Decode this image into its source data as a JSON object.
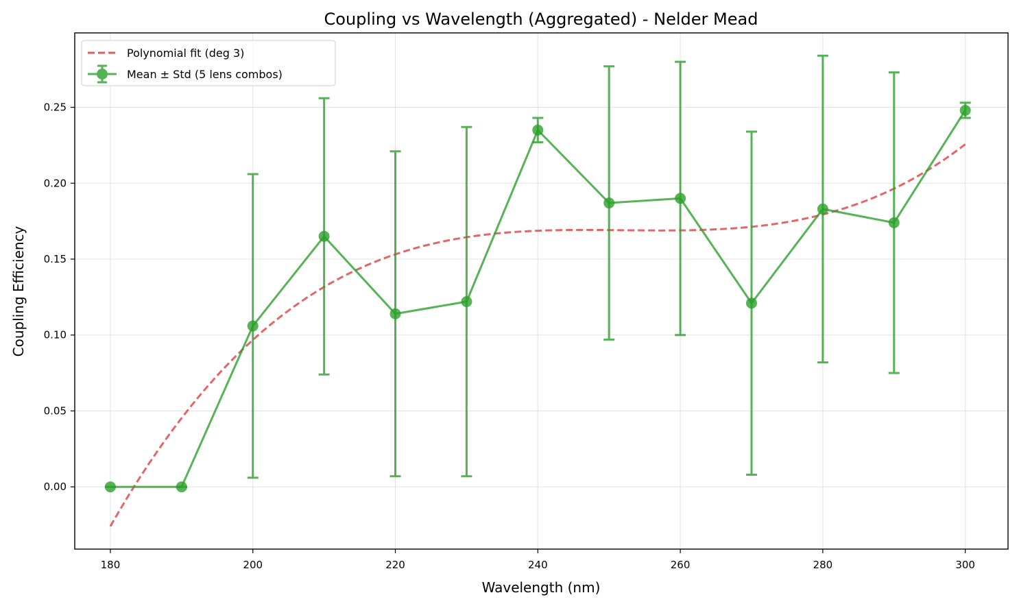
{
  "chart_data": {
    "type": "line",
    "title": "Coupling vs Wavelength (Aggregated) - Nelder Mead",
    "xlabel": "Wavelength (nm)",
    "ylabel": "Coupling Efficiency",
    "xlim": [
      175,
      306
    ],
    "ylim": [
      -0.041,
      0.299
    ],
    "x_ticks": [
      180,
      200,
      220,
      240,
      260,
      280,
      300
    ],
    "y_ticks": [
      0.0,
      0.05,
      0.1,
      0.15,
      0.2,
      0.25
    ],
    "x_tick_labels": [
      "180",
      "200",
      "220",
      "240",
      "260",
      "280",
      "300"
    ],
    "y_tick_labels": [
      "0.00",
      "0.05",
      "0.10",
      "0.15",
      "0.20",
      "0.25"
    ],
    "grid": true,
    "legend_position": "top-left",
    "series": [
      {
        "name": "Mean ± Std (5 lens combos)",
        "kind": "errorbar-line",
        "color": "#2ca02c",
        "x": [
          180,
          190,
          200,
          210,
          220,
          230,
          240,
          250,
          260,
          270,
          280,
          290,
          300
        ],
        "y": [
          0.0,
          0.0,
          0.106,
          0.165,
          0.114,
          0.122,
          0.235,
          0.187,
          0.19,
          0.121,
          0.183,
          0.174,
          0.248
        ],
        "yerr": [
          0.0,
          0.0,
          0.1,
          0.091,
          0.107,
          0.115,
          0.008,
          0.09,
          0.09,
          0.113,
          0.101,
          0.099,
          0.005
        ]
      },
      {
        "name": "Polynomial fit (deg 3)",
        "kind": "polyfit",
        "color": "#d62728",
        "degree": 3,
        "x_range": [
          180,
          300
        ]
      }
    ]
  }
}
